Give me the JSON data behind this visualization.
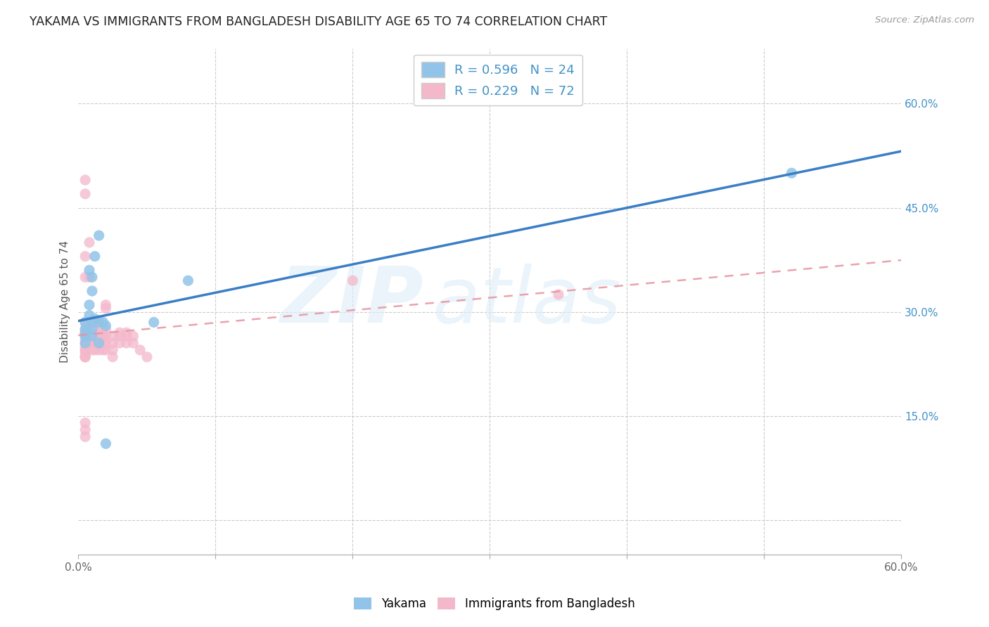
{
  "title": "YAKAMA VS IMMIGRANTS FROM BANGLADESH DISABILITY AGE 65 TO 74 CORRELATION CHART",
  "source": "Source: ZipAtlas.com",
  "ylabel": "Disability Age 65 to 74",
  "legend_label1": "Yakama",
  "legend_label2": "Immigrants from Bangladesh",
  "R1": 0.596,
  "N1": 24,
  "R2": 0.229,
  "N2": 72,
  "color_blue": "#91c4e8",
  "color_pink": "#f4b8cb",
  "color_blue_line": "#3a7ec6",
  "color_pink_line": "#e8929f",
  "color_text": "#4292c6",
  "xlim": [
    0.0,
    0.6
  ],
  "ylim": [
    -0.05,
    0.68
  ],
  "yticks": [
    0.0,
    0.15,
    0.3,
    0.45,
    0.6
  ],
  "xticks": [
    0.0,
    0.1,
    0.2,
    0.3,
    0.4,
    0.5,
    0.6
  ],
  "yakama_x": [
    0.005,
    0.005,
    0.005,
    0.005,
    0.005,
    0.008,
    0.008,
    0.008,
    0.01,
    0.01,
    0.01,
    0.01,
    0.01,
    0.012,
    0.012,
    0.015,
    0.015,
    0.015,
    0.018,
    0.02,
    0.055,
    0.08,
    0.52,
    0.02
  ],
  "yakama_y": [
    0.285,
    0.275,
    0.27,
    0.265,
    0.255,
    0.36,
    0.31,
    0.295,
    0.35,
    0.33,
    0.285,
    0.275,
    0.265,
    0.38,
    0.29,
    0.41,
    0.285,
    0.255,
    0.285,
    0.28,
    0.285,
    0.345,
    0.5,
    0.11
  ],
  "bangladesh_x": [
    0.005,
    0.005,
    0.005,
    0.005,
    0.005,
    0.005,
    0.005,
    0.005,
    0.005,
    0.005,
    0.005,
    0.005,
    0.005,
    0.005,
    0.005,
    0.005,
    0.005,
    0.005,
    0.005,
    0.005,
    0.008,
    0.008,
    0.008,
    0.008,
    0.008,
    0.008,
    0.008,
    0.01,
    0.01,
    0.01,
    0.01,
    0.01,
    0.01,
    0.01,
    0.012,
    0.012,
    0.012,
    0.012,
    0.012,
    0.012,
    0.015,
    0.015,
    0.015,
    0.015,
    0.015,
    0.015,
    0.018,
    0.018,
    0.018,
    0.018,
    0.02,
    0.02,
    0.02,
    0.02,
    0.02,
    0.02,
    0.025,
    0.025,
    0.025,
    0.025,
    0.03,
    0.03,
    0.03,
    0.035,
    0.035,
    0.035,
    0.04,
    0.04,
    0.045,
    0.05,
    0.2,
    0.35
  ],
  "bangladesh_y": [
    0.49,
    0.47,
    0.38,
    0.35,
    0.285,
    0.275,
    0.27,
    0.265,
    0.26,
    0.255,
    0.25,
    0.245,
    0.245,
    0.24,
    0.235,
    0.235,
    0.235,
    0.14,
    0.13,
    0.12,
    0.4,
    0.35,
    0.285,
    0.275,
    0.27,
    0.265,
    0.255,
    0.285,
    0.275,
    0.27,
    0.265,
    0.26,
    0.255,
    0.245,
    0.285,
    0.275,
    0.27,
    0.265,
    0.255,
    0.245,
    0.285,
    0.275,
    0.27,
    0.265,
    0.255,
    0.245,
    0.27,
    0.265,
    0.255,
    0.245,
    0.31,
    0.305,
    0.275,
    0.265,
    0.255,
    0.245,
    0.265,
    0.255,
    0.245,
    0.235,
    0.27,
    0.265,
    0.255,
    0.27,
    0.265,
    0.255,
    0.265,
    0.255,
    0.245,
    0.235,
    0.345,
    0.325
  ]
}
